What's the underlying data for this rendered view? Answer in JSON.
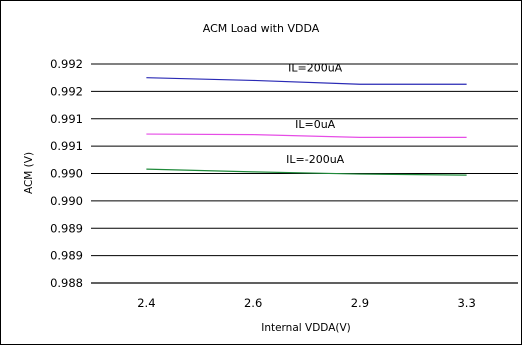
{
  "chart_data": {
    "type": "line",
    "title": "ACM Load with VDDA",
    "xlabel": "Internal VDDA(V)",
    "ylabel": "ACM (V)",
    "categories": [
      "2.4",
      "2.6",
      "2.9",
      "3.3"
    ],
    "y_tick_labels": [
      "0.988",
      "0.989",
      "0.989",
      "0.990",
      "0.990",
      "0.991",
      "0.991",
      "0.992",
      "0.992"
    ],
    "ylim": [
      0.988,
      0.992
    ],
    "grid": "horizontal",
    "series": [
      {
        "name": "IL=200uA",
        "color": "#2a2ab5",
        "values": [
          0.99175,
          0.9917,
          0.99163,
          0.99163
        ]
      },
      {
        "name": "IL=0uA",
        "color": "#e64de6",
        "values": [
          0.99072,
          0.99071,
          0.99066,
          0.99066
        ]
      },
      {
        "name": "IL=-200uA",
        "color": "#1f8a3a",
        "values": [
          0.99008,
          0.99003,
          0.98999,
          0.98997
        ]
      }
    ]
  }
}
